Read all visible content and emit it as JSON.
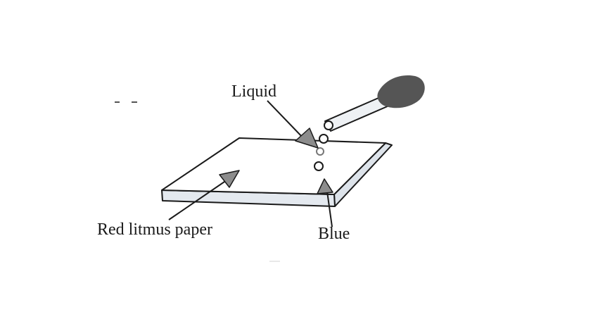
{
  "labels": {
    "liquid": "Liquid",
    "red_litmus_paper": "Red litmus paper",
    "blue": "Blue"
  },
  "colors": {
    "line": "#1a1a1a",
    "paper_top": "#ffffff",
    "paper_edge": "#dde3ea",
    "arrow_head": "#8c8c8c",
    "dropper_bulb": "#555555",
    "drop_outline": "#333333"
  }
}
